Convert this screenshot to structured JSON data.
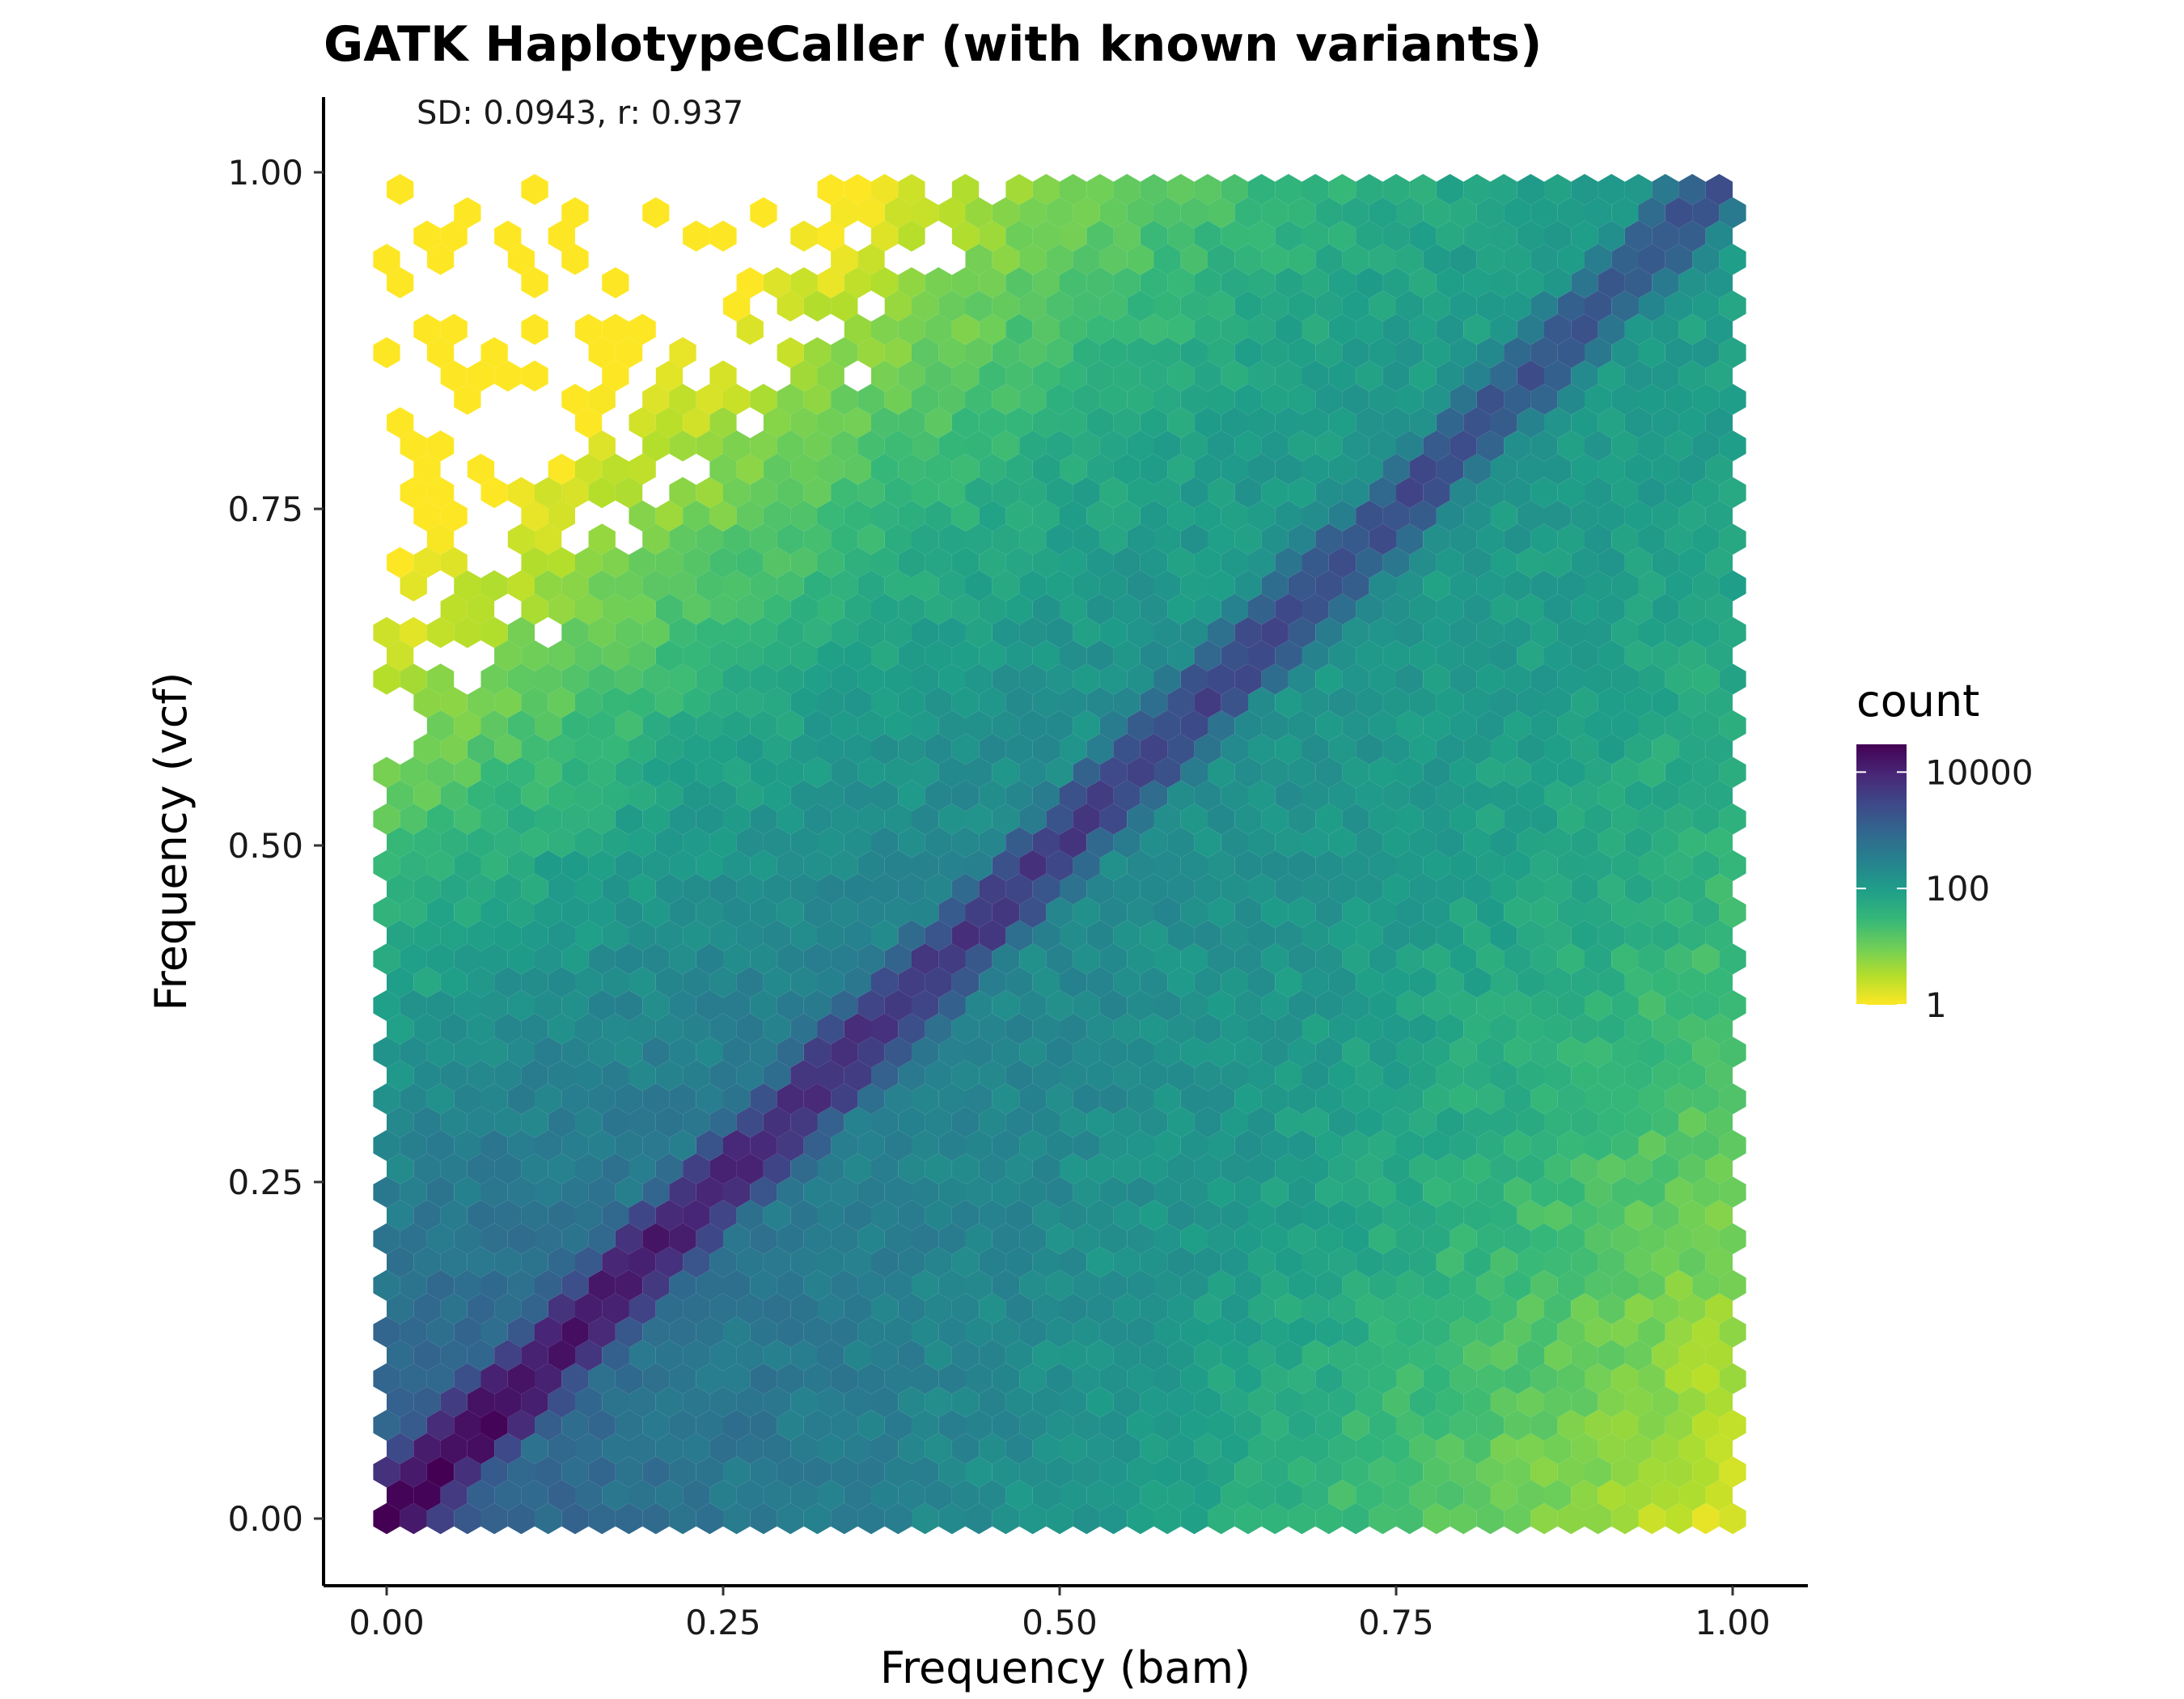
{
  "chart_data": {
    "type": "heatmap",
    "subtype": "hexbin",
    "title": "GATK HaplotypeCaller (with known variants)",
    "annotation": "SD: 0.0943, r: 0.937",
    "xlabel": "Frequency (bam)",
    "ylabel": "Frequency (vcf)",
    "xlim": [
      -0.05,
      1.05
    ],
    "ylim": [
      -0.05,
      1.05
    ],
    "x_ticks": [
      0,
      0.25,
      0.5,
      0.75,
      1
    ],
    "x_tick_labels": [
      "0.00",
      "0.25",
      "0.50",
      "0.75",
      "1.00"
    ],
    "y_ticks": [
      0,
      0.25,
      0.5,
      0.75,
      1
    ],
    "y_tick_labels": [
      "0.00",
      "0.25",
      "0.50",
      "0.75",
      "1.00"
    ],
    "grid": false,
    "legend": {
      "title": "count",
      "position": "right",
      "scale": "log10",
      "colormap": "viridis (reversed: high = dark purple, low = yellow)",
      "range": [
        1,
        30000
      ],
      "ticks": [
        1,
        100,
        10000
      ],
      "tick_labels": [
        "1",
        "100",
        "10000"
      ]
    },
    "density_model": {
      "description": "counts concentrated along the diagonal y = x; highest at low frequencies; sparse region above the diagonal toward the top-left",
      "diagonal_peak_count": 30000,
      "diagonal_width_sd": 0.0943,
      "correlation_r": 0.937,
      "bins_across": 50
    },
    "colors": [
      "#fde725",
      "#b5de2b",
      "#6ece58",
      "#35b779",
      "#1f9e89",
      "#26828e",
      "#31688e",
      "#3e4989",
      "#482878",
      "#440154"
    ]
  }
}
